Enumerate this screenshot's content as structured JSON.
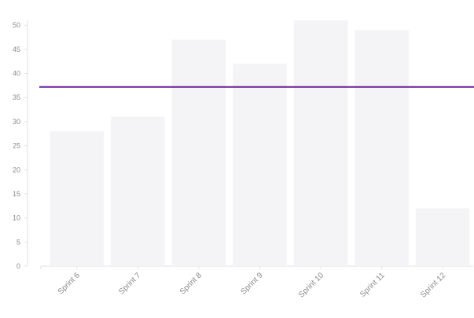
{
  "chart_data": {
    "type": "bar",
    "categories": [
      "Sprint 6",
      "Sprint 7",
      "Sprint 8",
      "Sprint 9",
      "Sprint 10",
      "Sprint 11",
      "Sprint 12"
    ],
    "series": [
      {
        "values": [
          28,
          31,
          47,
          42,
          51,
          49,
          12
        ]
      }
    ],
    "reference_line": {
      "value": 37.2
    },
    "title": "",
    "xlabel": "",
    "ylabel": "",
    "ylim": [
      0,
      51
    ],
    "yticks": [
      0,
      5,
      10,
      15,
      20,
      25,
      30,
      35,
      40,
      45,
      50
    ],
    "grid": false,
    "legend": "none",
    "colors": {
      "bar": "#f4f4f6",
      "reference_line": "#6a1b9a",
      "axis": "#e2e2e2",
      "tick_text": "#8a8a8a"
    }
  }
}
